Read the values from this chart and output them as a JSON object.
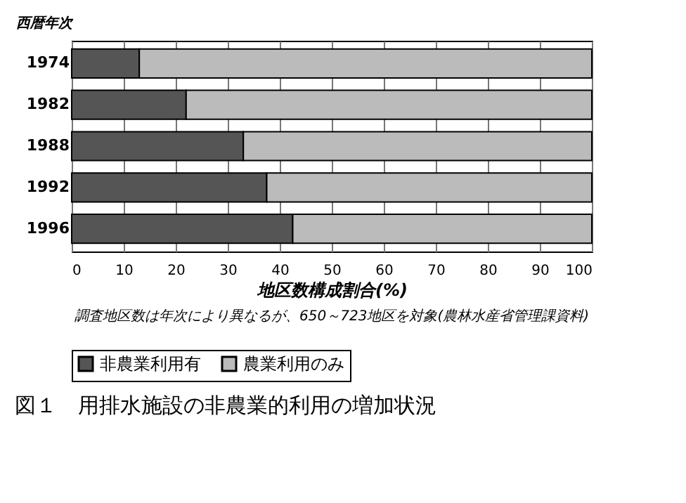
{
  "chart_data": {
    "type": "bar",
    "orientation": "horizontal",
    "stacked": true,
    "title": "図１　用排水施設の非農業的利用の増加状況",
    "ylabel": "西暦年次",
    "xlabel": "地区数構成割合(%)",
    "categories": [
      "1974",
      "1982",
      "1988",
      "1992",
      "1996"
    ],
    "series": [
      {
        "name": "非農業利用有",
        "color": "#555555",
        "values": [
          13,
          22,
          33,
          37.5,
          42.5
        ]
      },
      {
        "name": "農業利用のみ",
        "color": "#bbbbbb",
        "values": [
          87,
          78,
          67,
          62.5,
          57.5
        ]
      }
    ],
    "xlim": [
      0,
      100
    ],
    "xticks": [
      0,
      10,
      20,
      30,
      40,
      50,
      60,
      70,
      80,
      90,
      100
    ],
    "grid": "x",
    "legend": "bottom",
    "annotations": [
      "調査地区数は年次により異なるが、650～723地区を対象(農林水産省管理課資料)"
    ]
  }
}
